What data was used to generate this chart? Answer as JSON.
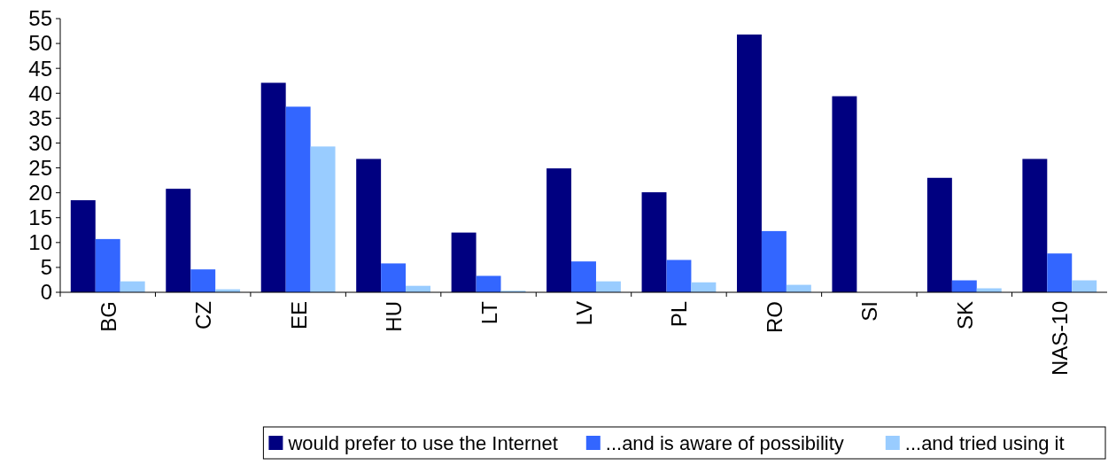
{
  "chart_data": {
    "type": "bar",
    "categories": [
      "BG",
      "CZ",
      "EE",
      "HU",
      "LT",
      "LV",
      "PL",
      "RO",
      "SI",
      "SK",
      "NAS-10"
    ],
    "series": [
      {
        "name": "would prefer to use the Internet",
        "color": "#000080",
        "values": [
          18.5,
          20.8,
          42.1,
          26.8,
          12,
          24.9,
          20.1,
          51.8,
          39.4,
          23,
          26.8
        ]
      },
      {
        "name": "...and is aware of possibility",
        "color": "#3366ff",
        "values": [
          10.7,
          4.6,
          37.3,
          5.8,
          3.3,
          6.2,
          6.5,
          12.3,
          null,
          2.4,
          7.8
        ]
      },
      {
        "name": "...and tried using it",
        "color": "#99ccff",
        "values": [
          2.2,
          0.6,
          29.3,
          1.3,
          0.3,
          2.2,
          2,
          1.5,
          null,
          0.8,
          2.4
        ]
      }
    ],
    "ylim": [
      0,
      55
    ],
    "yticks": [
      0,
      5,
      10,
      15,
      20,
      25,
      30,
      35,
      40,
      45,
      50,
      55
    ],
    "grid": false,
    "legend": "bottom"
  }
}
